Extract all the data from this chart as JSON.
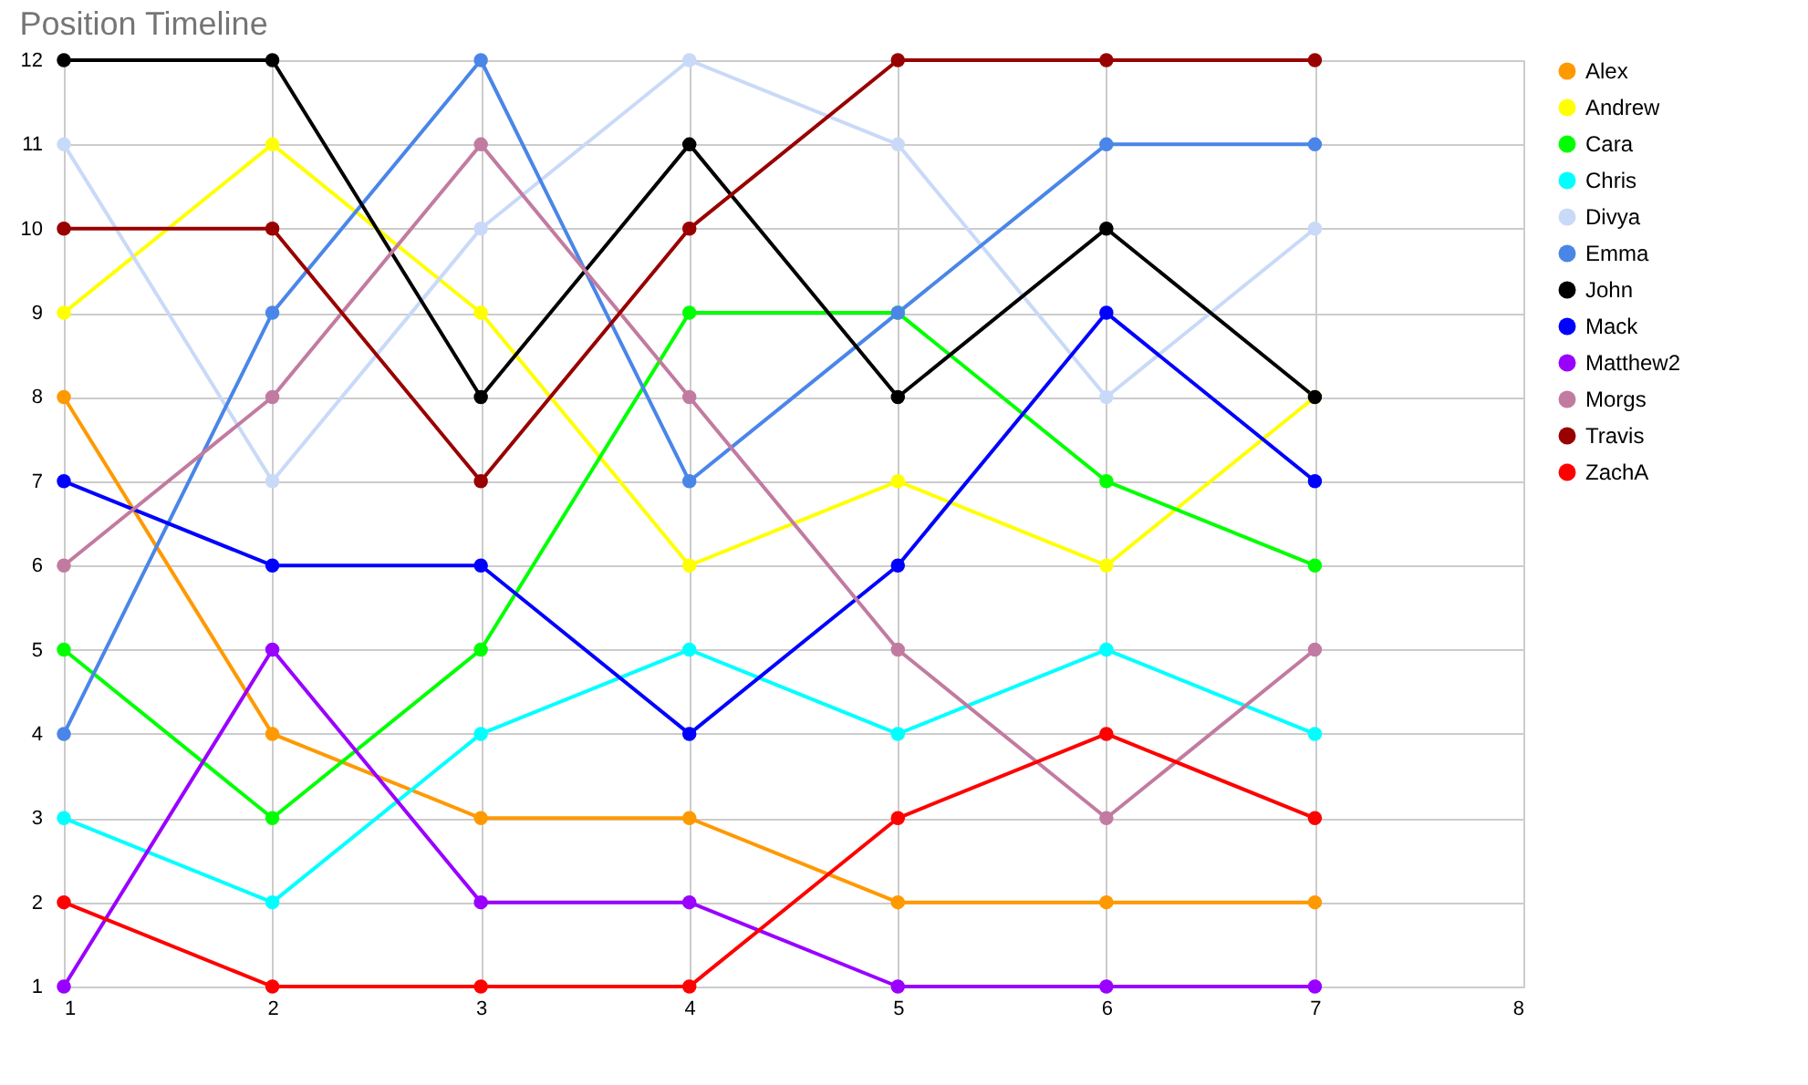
{
  "chart_data": {
    "type": "line",
    "title": "Position Timeline",
    "x": [
      1,
      2,
      3,
      4,
      5,
      6,
      7
    ],
    "xlim": [
      1,
      8
    ],
    "xticks": [
      1,
      2,
      3,
      4,
      5,
      6,
      7,
      8
    ],
    "ylim": [
      1,
      12
    ],
    "yticks": [
      1,
      2,
      3,
      4,
      5,
      6,
      7,
      8,
      9,
      10,
      11,
      12
    ],
    "grid": true,
    "legend": "right",
    "marker": "circle",
    "line_style": "solid",
    "series": [
      {
        "name": "Alex",
        "color": "#ff9900",
        "values": [
          8,
          4,
          3,
          3,
          2,
          2,
          2
        ]
      },
      {
        "name": "Andrew",
        "color": "#ffff00",
        "values": [
          9,
          11,
          9,
          6,
          7,
          6,
          8
        ]
      },
      {
        "name": "Cara",
        "color": "#00ff00",
        "values": [
          5,
          3,
          5,
          9,
          9,
          7,
          6
        ]
      },
      {
        "name": "Chris",
        "color": "#00ffff",
        "values": [
          3,
          2,
          4,
          5,
          4,
          5,
          4
        ]
      },
      {
        "name": "Divya",
        "color": "#c9daf8",
        "values": [
          11,
          7,
          10,
          12,
          11,
          8,
          10
        ]
      },
      {
        "name": "Emma",
        "color": "#4a86e8",
        "values": [
          4,
          9,
          12,
          7,
          9,
          11,
          11
        ]
      },
      {
        "name": "John",
        "color": "#000000",
        "values": [
          12,
          12,
          8,
          11,
          8,
          10,
          8
        ]
      },
      {
        "name": "Mack",
        "color": "#0000ff",
        "values": [
          7,
          6,
          6,
          4,
          6,
          9,
          7
        ]
      },
      {
        "name": "Matthew2",
        "color": "#9900ff",
        "values": [
          1,
          5,
          2,
          2,
          1,
          1,
          1
        ]
      },
      {
        "name": "Morgs",
        "color": "#c27ba0",
        "values": [
          6,
          8,
          11,
          8,
          5,
          3,
          5
        ]
      },
      {
        "name": "Travis",
        "color": "#990000",
        "values": [
          10,
          10,
          7,
          10,
          12,
          12,
          12
        ]
      },
      {
        "name": "ZachA",
        "color": "#ff0000",
        "values": [
          2,
          1,
          1,
          1,
          3,
          4,
          3
        ]
      }
    ]
  }
}
